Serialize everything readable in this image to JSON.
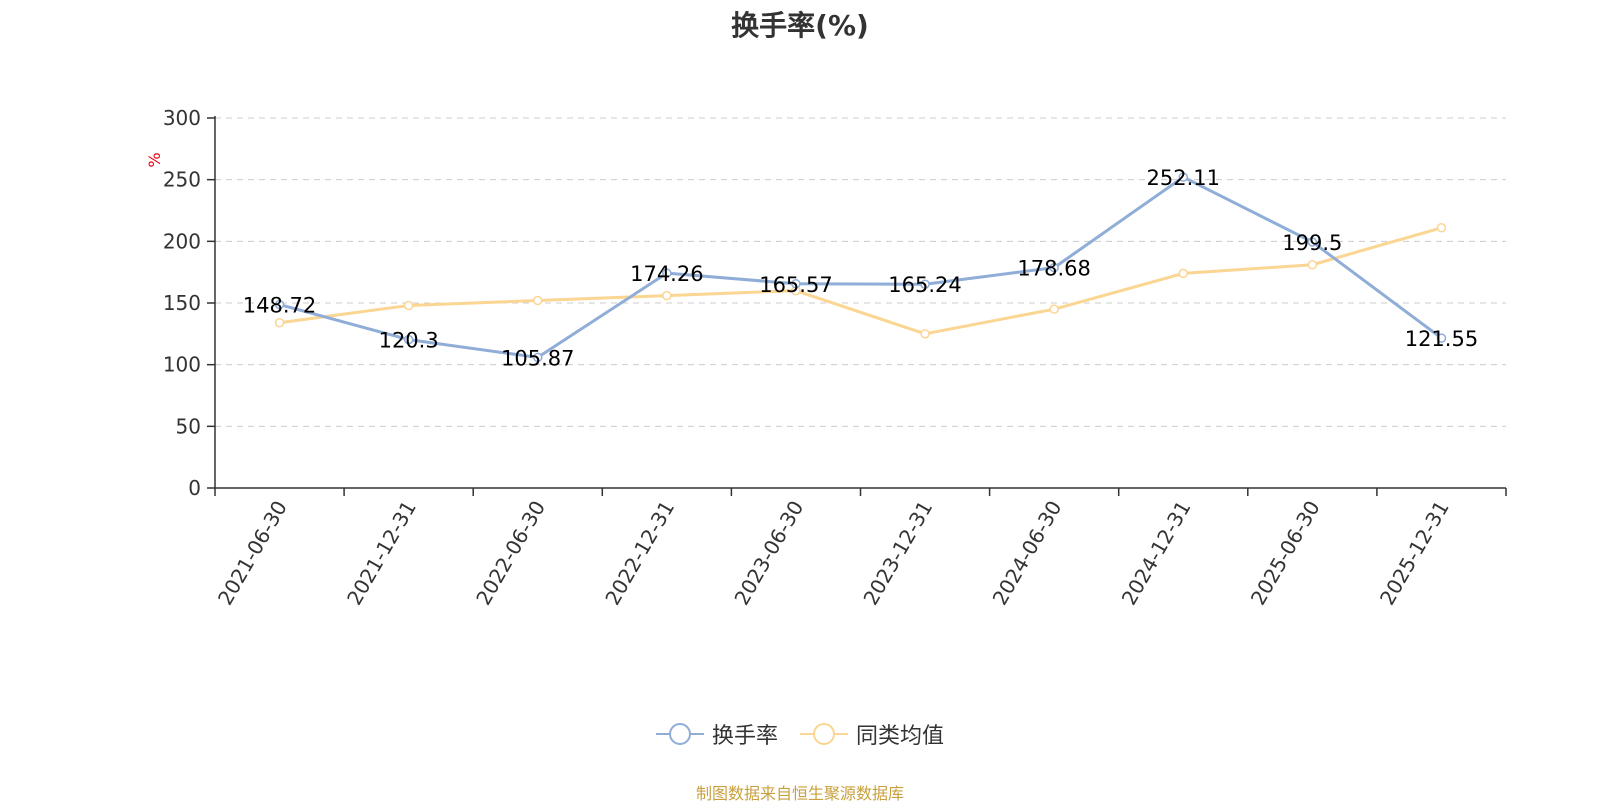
{
  "colors": {
    "series_1": "#8fadd7",
    "series_2": "#fbd592",
    "grid": "#cccccc",
    "axis": "#333333",
    "unit": "#e6000d",
    "source": "#c8a040"
  },
  "footer": {
    "source": "制图数据来自恒生聚源数据库"
  },
  "chart_data": {
    "type": "line",
    "title": "换手率(%)",
    "ylabel": "%",
    "ylim": [
      0,
      300
    ],
    "yticks": [
      "0",
      "50",
      "100",
      "150",
      "200",
      "250",
      "300"
    ],
    "categories": [
      "2021-06-30",
      "2021-12-31",
      "2022-06-30",
      "2022-12-31",
      "2023-06-30",
      "2023-12-31",
      "2024-06-30",
      "2024-12-31",
      "2025-06-30",
      "2025-12-31"
    ],
    "series": [
      {
        "name": "换手率",
        "values": [
          148.72,
          120.3,
          105.87,
          174.26,
          165.57,
          165.24,
          178.68,
          252.11,
          199.5,
          121.55
        ],
        "labels": [
          "148.72",
          "120.3",
          "105.87",
          "174.26",
          "165.57",
          "165.24",
          "178.68",
          "252.11",
          "199.5",
          "121.55"
        ]
      },
      {
        "name": "同类均值",
        "values": [
          134,
          148,
          152,
          156,
          160,
          125,
          145,
          174,
          181,
          211
        ]
      }
    ],
    "grid": true,
    "legend": "bottom-center"
  }
}
